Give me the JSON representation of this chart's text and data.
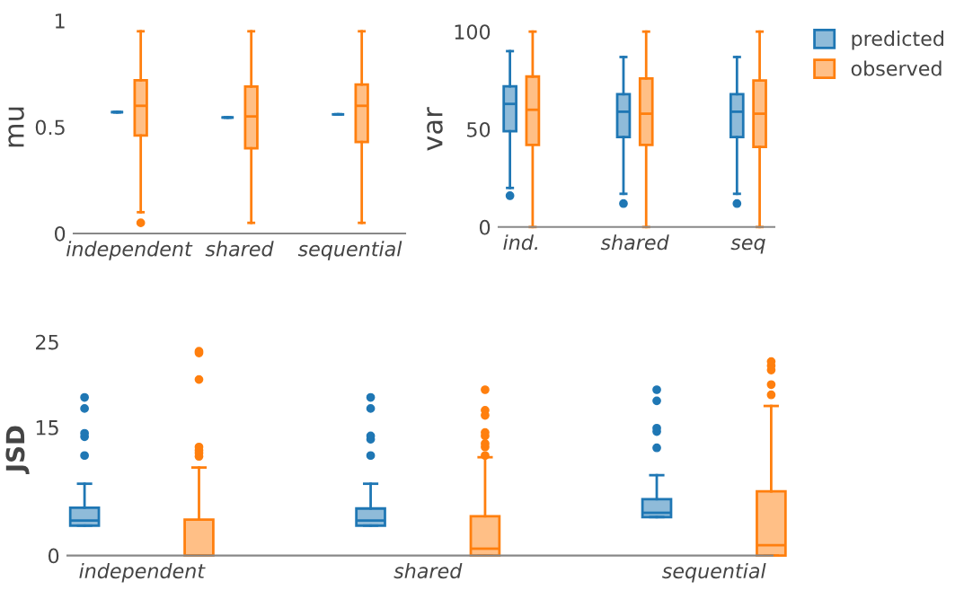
{
  "chart_data": [
    {
      "type": "box",
      "ylabel": "mu",
      "categories": [
        "independent",
        "shared",
        "sequential"
      ],
      "ylim": [
        0,
        1
      ],
      "yticks": [
        0,
        0.5,
        1
      ],
      "grid": false,
      "legend": false,
      "series": [
        {
          "color": "#1f77b4",
          "boxes": [
            {
              "low": 0.57,
              "q1": 0.57,
              "median": 0.57,
              "q3": 0.57,
              "high": 0.57
            },
            {
              "low": 0.545,
              "q1": 0.545,
              "median": 0.545,
              "q3": 0.545,
              "high": 0.545
            },
            {
              "low": 0.56,
              "q1": 0.56,
              "median": 0.56,
              "q3": 0.56,
              "high": 0.56
            }
          ]
        },
        {
          "color": "#ff7f0e",
          "boxes": [
            {
              "low": 0.1,
              "q1": 0.46,
              "median": 0.6,
              "q3": 0.72,
              "high": 0.95,
              "outliers": [
                0.05
              ]
            },
            {
              "low": 0.05,
              "q1": 0.4,
              "median": 0.55,
              "q3": 0.69,
              "high": 0.95
            },
            {
              "low": 0.05,
              "q1": 0.43,
              "median": 0.6,
              "q3": 0.7,
              "high": 0.95
            }
          ]
        }
      ]
    },
    {
      "type": "box",
      "ylabel": "var",
      "categories": [
        "ind.",
        "shared",
        "seq"
      ],
      "ylim": [
        0,
        100
      ],
      "yticks": [
        0,
        50,
        100
      ],
      "grid": false,
      "legend": "top right",
      "series": [
        {
          "name": "predicted",
          "color": "#1f77b4",
          "boxes": [
            {
              "low": 20,
              "q1": 49,
              "median": 63,
              "q3": 72,
              "high": 90,
              "outliers": [
                16
              ]
            },
            {
              "low": 17,
              "q1": 46,
              "median": 59,
              "q3": 68,
              "high": 87,
              "outliers": [
                12
              ]
            },
            {
              "low": 17,
              "q1": 46,
              "median": 59,
              "q3": 68,
              "high": 87,
              "outliers": [
                12
              ]
            }
          ]
        },
        {
          "name": "observed",
          "color": "#ff7f0e",
          "boxes": [
            {
              "low": 0,
              "q1": 42,
              "median": 60,
              "q3": 77,
              "high": 100
            },
            {
              "low": 0,
              "q1": 42,
              "median": 58,
              "q3": 76,
              "high": 100
            },
            {
              "low": 0,
              "q1": 41,
              "median": 58,
              "q3": 75,
              "high": 100
            }
          ]
        }
      ]
    },
    {
      "type": "box",
      "ylabel": "JSD",
      "categories": [
        "independent",
        "shared",
        "sequential"
      ],
      "ylim": [
        0,
        25
      ],
      "yticks": [
        0,
        15,
        25
      ],
      "grid": false,
      "legend": false,
      "series": [
        {
          "color": "#1f77b4",
          "boxes": [
            {
              "low": 3.5,
              "q1": 3.5,
              "median": 4.1,
              "q3": 5.6,
              "high": 8.4,
              "outliers": [
                11.7,
                13.9,
                14.3,
                17.2,
                18.5
              ]
            },
            {
              "low": 3.5,
              "q1": 3.5,
              "median": 4.1,
              "q3": 5.5,
              "high": 8.4,
              "outliers": [
                11.7,
                13.6,
                14.0,
                17.2,
                18.5
              ]
            },
            {
              "low": 4.5,
              "q1": 4.5,
              "median": 5.0,
              "q3": 6.6,
              "high": 9.4,
              "outliers": [
                12.6,
                14.5,
                14.9,
                18.1,
                19.4
              ]
            }
          ]
        },
        {
          "color": "#ff7f0e",
          "boxes": [
            {
              "low": 0,
              "q1": 0,
              "median": 0,
              "q3": 4.2,
              "high": 10.3,
              "outliers": [
                11.6,
                12.0,
                12.3,
                12.7,
                20.6,
                23.7,
                23.9
              ]
            },
            {
              "low": 0,
              "q1": 0,
              "median": 0.8,
              "q3": 4.6,
              "high": 11.5,
              "outliers": [
                11.7,
                12.7,
                13.1,
                14.0,
                14.4,
                16.4,
                17.0,
                19.4
              ]
            },
            {
              "low": 0,
              "q1": 0,
              "median": 1.2,
              "q3": 7.5,
              "high": 17.5,
              "outliers": [
                18.8,
                20.0,
                21.7,
                22.2,
                22.7
              ]
            }
          ]
        }
      ]
    }
  ]
}
